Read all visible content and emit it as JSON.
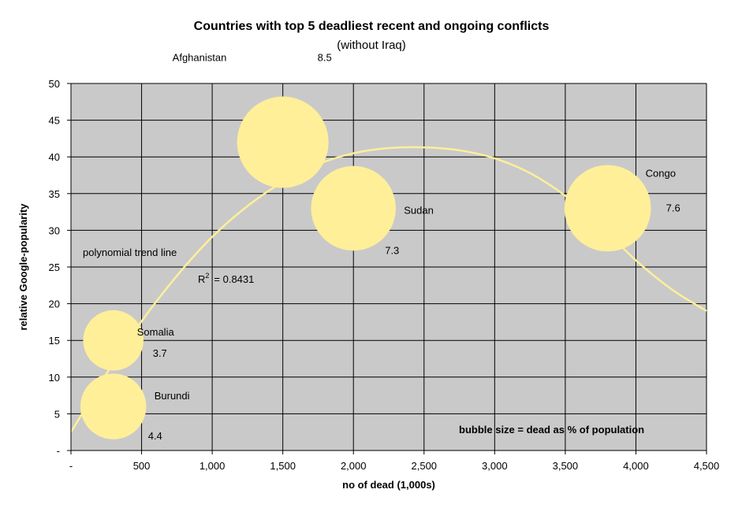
{
  "chart_data": {
    "type": "scatter",
    "title": "Countries with top 5 deadliest recent and ongoing conflicts",
    "subtitle": "(without Iraq)",
    "xlabel": "no of dead (1,000s)",
    "ylabel": "relative Google-popularity",
    "xlim": [
      0,
      4500
    ],
    "ylim": [
      0,
      50
    ],
    "x_ticks": [
      0,
      500,
      1000,
      1500,
      2000,
      2500,
      3000,
      3500,
      4000,
      4500
    ],
    "x_tick_labels": [
      "-",
      "500",
      "1,000",
      "1,500",
      "2,000",
      "2,500",
      "3,000",
      "3,500",
      "4,000",
      "4,500"
    ],
    "y_ticks": [
      0,
      5,
      10,
      15,
      20,
      25,
      30,
      35,
      40,
      45,
      50
    ],
    "y_tick_labels": [
      "-",
      "5",
      "10",
      "15",
      "20",
      "25",
      "30",
      "35",
      "40",
      "45",
      "50"
    ],
    "grid": true,
    "bubble_color": "#ffef99",
    "plot_background": "#c9c9c9",
    "trend_color": "#ffef99",
    "points": [
      {
        "name": "Afghanistan",
        "x": 1500,
        "y": 42,
        "size": 8.5,
        "size_label": "8.5"
      },
      {
        "name": "Sudan",
        "x": 2000,
        "y": 33,
        "size": 7.3,
        "size_label": "7.3"
      },
      {
        "name": "Congo",
        "x": 3800,
        "y": 33,
        "size": 7.6,
        "size_label": "7.6"
      },
      {
        "name": "Somalia",
        "x": 300,
        "y": 15,
        "size": 3.7,
        "size_label": "3.7"
      },
      {
        "name": "Burundi",
        "x": 300,
        "y": 6,
        "size": 4.4,
        "size_label": "4.4"
      }
    ],
    "trendline": {
      "type": "polynomial",
      "label": "polynomial trend line",
      "r2_prefix": "R",
      "r2_sup": "2",
      "r2_value": "= 0.8431",
      "points": [
        [
          0,
          2.5
        ],
        [
          250,
          10.4
        ],
        [
          500,
          17.6
        ],
        [
          750,
          23.8
        ],
        [
          1000,
          29.1
        ],
        [
          1250,
          33.3
        ],
        [
          1500,
          36.6
        ],
        [
          1750,
          39.0
        ],
        [
          2000,
          40.5
        ],
        [
          2250,
          41.2
        ],
        [
          2500,
          41.3
        ],
        [
          2750,
          40.9
        ],
        [
          3000,
          39.8
        ],
        [
          3250,
          37.8
        ],
        [
          3500,
          34.7
        ],
        [
          3750,
          30.6
        ],
        [
          4000,
          25.9
        ],
        [
          4250,
          22.0
        ],
        [
          4500,
          19.0
        ]
      ]
    },
    "annotation": "bubble size = dead as % of population"
  }
}
